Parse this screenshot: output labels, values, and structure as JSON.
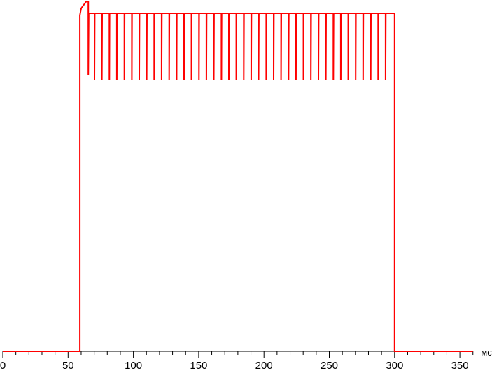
{
  "chart_data": {
    "type": "line",
    "title": "",
    "xlabel": "",
    "ylabel": "",
    "x_unit": "мс",
    "xlim": [
      0,
      360
    ],
    "x_ticks": [
      0,
      50,
      100,
      150,
      200,
      250,
      300,
      350
    ],
    "x_tick_labels": [
      "0",
      "50",
      "100",
      "150",
      "200",
      "250",
      "300",
      "350"
    ],
    "x_minor_tick_step": 10,
    "ylim": [
      0,
      100
    ],
    "grid": false,
    "line_color": "#ff0000",
    "series": [
      {
        "baseline": 0,
        "rise_ms": 59,
        "fall_ms": 300,
        "overshoot": [
          [
            59,
            96
          ],
          [
            60,
            98
          ],
          [
            61,
            98.5
          ],
          [
            62,
            99
          ],
          [
            63,
            99.5
          ],
          [
            64,
            100
          ],
          [
            65,
            100
          ]
        ],
        "plateau": 96.6,
        "first_dip": {
          "x": 65.5,
          "y": 79
        },
        "dip_level": 77.6,
        "dip_times": [
          70.2,
          75.9,
          81.6,
          87.3,
          93.1,
          98.8,
          104.5,
          110.2,
          115.9,
          121.6,
          127.4,
          133.1,
          138.8,
          144.5,
          150.2,
          155.9,
          161.6,
          167.4,
          173.1,
          178.8,
          184.5,
          190.2,
          195.9,
          201.7,
          207.4,
          213.1,
          218.8,
          224.5,
          230.2,
          235.9,
          241.7,
          247.4,
          253.1,
          258.8,
          264.5,
          270.2,
          275.9,
          281.7,
          287.4,
          293.1
        ]
      }
    ]
  }
}
